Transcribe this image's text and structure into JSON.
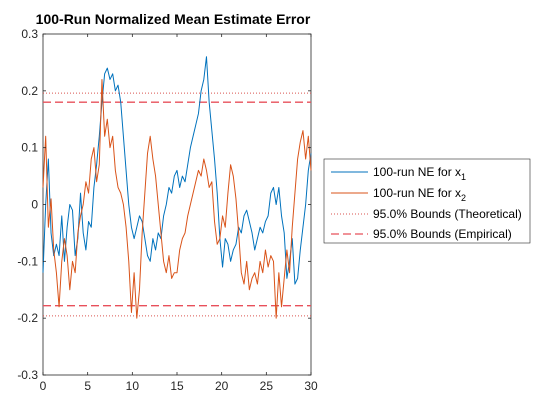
{
  "chart_data": {
    "type": "line",
    "title": "100-Run Normalized Mean Estimate Error",
    "xlabel": "",
    "ylabel": "",
    "xlim": [
      0,
      30
    ],
    "ylim": [
      -0.3,
      0.3
    ],
    "x_ticks": [
      "0",
      "5",
      "10",
      "15",
      "20",
      "25",
      "30"
    ],
    "y_ticks": [
      "-0.3",
      "-0.2",
      "-0.1",
      "0",
      "0.1",
      "0.2",
      "0.3"
    ],
    "grid": false,
    "legend_position": "outside-right",
    "series": [
      {
        "name": "100-run NE for x",
        "subscript": "1",
        "color": "#0072BD",
        "style": "solid",
        "x": [
          0,
          0.3,
          0.6,
          0.9,
          1.2,
          1.5,
          1.8,
          2.1,
          2.4,
          2.7,
          3.0,
          3.3,
          3.6,
          3.9,
          4.2,
          4.5,
          4.8,
          5.1,
          5.4,
          5.7,
          6.0,
          6.3,
          6.6,
          6.9,
          7.2,
          7.5,
          7.8,
          8.1,
          8.4,
          8.7,
          9.0,
          9.3,
          9.6,
          9.9,
          10.2,
          10.5,
          10.8,
          11.1,
          11.4,
          11.7,
          12.0,
          12.3,
          12.6,
          12.9,
          13.2,
          13.5,
          13.8,
          14.1,
          14.4,
          14.7,
          15.0,
          15.3,
          15.6,
          15.9,
          16.2,
          16.5,
          16.8,
          17.1,
          17.4,
          17.7,
          18.0,
          18.3,
          18.6,
          18.9,
          19.2,
          19.5,
          19.8,
          20.1,
          20.4,
          20.7,
          21.0,
          21.3,
          21.6,
          21.9,
          22.2,
          22.5,
          22.8,
          23.1,
          23.4,
          23.7,
          24.0,
          24.3,
          24.6,
          24.9,
          25.2,
          25.5,
          25.8,
          26.1,
          26.4,
          26.7,
          27.0,
          27.3,
          27.6,
          27.9,
          28.2,
          28.5,
          28.8,
          29.1,
          29.4,
          29.7,
          30.0
        ],
        "y": [
          -0.12,
          0.0,
          0.08,
          -0.05,
          -0.09,
          -0.07,
          -0.09,
          -0.02,
          -0.1,
          -0.04,
          0.0,
          -0.01,
          -0.09,
          -0.06,
          0.02,
          -0.05,
          -0.08,
          -0.03,
          -0.04,
          0.03,
          0.07,
          0.12,
          0.18,
          0.23,
          0.24,
          0.22,
          0.23,
          0.2,
          0.21,
          0.18,
          0.12,
          0.06,
          0.0,
          -0.04,
          -0.06,
          -0.04,
          -0.02,
          -0.03,
          -0.06,
          -0.09,
          -0.1,
          -0.06,
          -0.08,
          -0.05,
          -0.06,
          -0.02,
          0.0,
          0.03,
          0.02,
          0.05,
          0.06,
          0.03,
          0.05,
          0.04,
          0.07,
          0.1,
          0.12,
          0.14,
          0.16,
          0.2,
          0.22,
          0.26,
          0.18,
          0.13,
          0.08,
          0.02,
          -0.06,
          -0.11,
          -0.06,
          -0.07,
          -0.1,
          -0.08,
          -0.07,
          -0.04,
          -0.05,
          -0.02,
          -0.01,
          -0.03,
          -0.05,
          -0.08,
          -0.06,
          -0.04,
          -0.05,
          -0.03,
          -0.02,
          0.02,
          0.03,
          0.0,
          0.03,
          -0.02,
          -0.05,
          -0.13,
          -0.1,
          -0.06,
          -0.14,
          -0.13,
          -0.08,
          -0.04,
          0.0,
          0.06,
          0.09
        ]
      },
      {
        "name": "100-run NE for x",
        "subscript": "2",
        "color": "#D95319",
        "style": "solid",
        "x": [
          0,
          0.3,
          0.6,
          0.9,
          1.2,
          1.5,
          1.8,
          2.1,
          2.4,
          2.7,
          3.0,
          3.3,
          3.6,
          3.9,
          4.2,
          4.5,
          4.8,
          5.1,
          5.4,
          5.7,
          6.0,
          6.3,
          6.6,
          6.9,
          7.2,
          7.5,
          7.8,
          8.1,
          8.4,
          8.7,
          9.0,
          9.3,
          9.6,
          9.9,
          10.2,
          10.5,
          10.8,
          11.1,
          11.4,
          11.7,
          12.0,
          12.3,
          12.6,
          12.9,
          13.2,
          13.5,
          13.8,
          14.1,
          14.4,
          14.7,
          15.0,
          15.3,
          15.6,
          15.9,
          16.2,
          16.5,
          16.8,
          17.1,
          17.4,
          17.7,
          18.0,
          18.3,
          18.6,
          18.9,
          19.2,
          19.5,
          19.8,
          20.1,
          20.4,
          20.7,
          21.0,
          21.3,
          21.6,
          21.9,
          22.2,
          22.5,
          22.8,
          23.1,
          23.4,
          23.7,
          24.0,
          24.3,
          24.6,
          24.9,
          25.2,
          25.5,
          25.8,
          26.1,
          26.4,
          26.7,
          27.0,
          27.3,
          27.6,
          27.9,
          28.2,
          28.5,
          28.8,
          29.1,
          29.4,
          29.7,
          30.0
        ],
        "y": [
          0.03,
          0.12,
          -0.04,
          0.01,
          -0.08,
          -0.12,
          -0.18,
          -0.1,
          -0.06,
          -0.09,
          -0.15,
          -0.1,
          -0.12,
          -0.05,
          -0.02,
          0.0,
          0.04,
          0.02,
          0.08,
          0.1,
          0.04,
          0.07,
          0.22,
          0.12,
          0.15,
          0.1,
          0.12,
          0.06,
          0.03,
          0.02,
          0.0,
          -0.04,
          -0.1,
          -0.19,
          -0.12,
          -0.2,
          -0.15,
          -0.05,
          0.02,
          0.09,
          0.12,
          0.08,
          0.05,
          0.0,
          -0.05,
          -0.1,
          -0.12,
          -0.09,
          -0.13,
          -0.12,
          -0.12,
          -0.08,
          -0.06,
          -0.05,
          -0.02,
          0.0,
          0.02,
          0.04,
          0.06,
          0.05,
          0.08,
          0.06,
          0.03,
          0.04,
          -0.03,
          -0.07,
          -0.06,
          -0.02,
          -0.04,
          0.02,
          0.07,
          0.05,
          0.01,
          -0.05,
          -0.12,
          -0.14,
          -0.1,
          -0.15,
          -0.13,
          -0.12,
          -0.14,
          -0.1,
          -0.12,
          -0.08,
          -0.11,
          -0.09,
          -0.1,
          -0.2,
          -0.12,
          -0.18,
          -0.13,
          -0.08,
          -0.12,
          -0.04,
          0.02,
          0.08,
          0.11,
          0.13,
          0.08,
          0.12,
          0.06
        ]
      },
      {
        "name": "95.0% Bounds (Theoretical)",
        "color": "#D9534F",
        "style": "dotted",
        "values": [
          0.196,
          -0.196
        ]
      },
      {
        "name": "95.0% Bounds (Empirical)",
        "color": "#E8505B",
        "style": "dashed",
        "values": [
          0.18,
          -0.178
        ]
      }
    ]
  }
}
